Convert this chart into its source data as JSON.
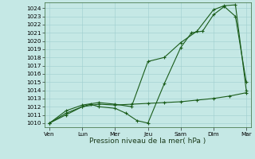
{
  "bg_color": "#c5e8e5",
  "grid_color": "#9ecece",
  "line_color": "#1a5c1a",
  "xlabel": "Pression niveau de la mer( hPa )",
  "ylim": [
    1009.5,
    1024.7
  ],
  "yticks": [
    1010,
    1011,
    1012,
    1013,
    1014,
    1015,
    1016,
    1017,
    1018,
    1019,
    1020,
    1021,
    1022,
    1023,
    1024
  ],
  "xlim": [
    -0.15,
    6.15
  ],
  "xtick_labels": [
    "Ven",
    "Lun",
    "Mer",
    "Jeu",
    "Sam",
    "Dim",
    "Mar"
  ],
  "xtick_positions": [
    0,
    1,
    2,
    3,
    4,
    5,
    6
  ],
  "line1": {
    "x": [
      0,
      0.5,
      1.0,
      1.25,
      1.5,
      2.0,
      2.33,
      2.67,
      3.0,
      3.5,
      4.0,
      4.33,
      4.67,
      5.0,
      5.33,
      5.67,
      6.0
    ],
    "y": [
      1010.0,
      1011.2,
      1012.0,
      1012.3,
      1012.0,
      1011.8,
      1011.2,
      1010.3,
      1010.0,
      1014.8,
      1019.2,
      1021.0,
      1021.2,
      1023.2,
      1024.2,
      1023.0,
      1015.0
    ]
  },
  "line2": {
    "x": [
      0,
      0.5,
      1.0,
      1.5,
      2.0,
      2.5,
      3.0,
      3.5,
      4.0,
      4.5,
      5.0,
      5.33,
      5.67,
      6.0
    ],
    "y": [
      1010.0,
      1011.5,
      1012.2,
      1012.5,
      1012.3,
      1012.0,
      1017.5,
      1018.0,
      1019.8,
      1021.2,
      1023.8,
      1024.3,
      1024.4,
      1014.0
    ]
  },
  "line3": {
    "x": [
      0,
      0.5,
      1.0,
      1.5,
      2.0,
      2.5,
      3.0,
      3.5,
      4.0,
      4.5,
      5.0,
      5.5,
      6.0
    ],
    "y": [
      1010.0,
      1011.0,
      1012.0,
      1012.3,
      1012.2,
      1012.3,
      1012.4,
      1012.5,
      1012.6,
      1012.8,
      1013.0,
      1013.3,
      1013.7
    ]
  },
  "ylabel_fontsize": 5.0,
  "xlabel_fontsize": 6.5,
  "tick_fontsize": 5.2,
  "linewidth": 0.8,
  "markersize": 3.0
}
